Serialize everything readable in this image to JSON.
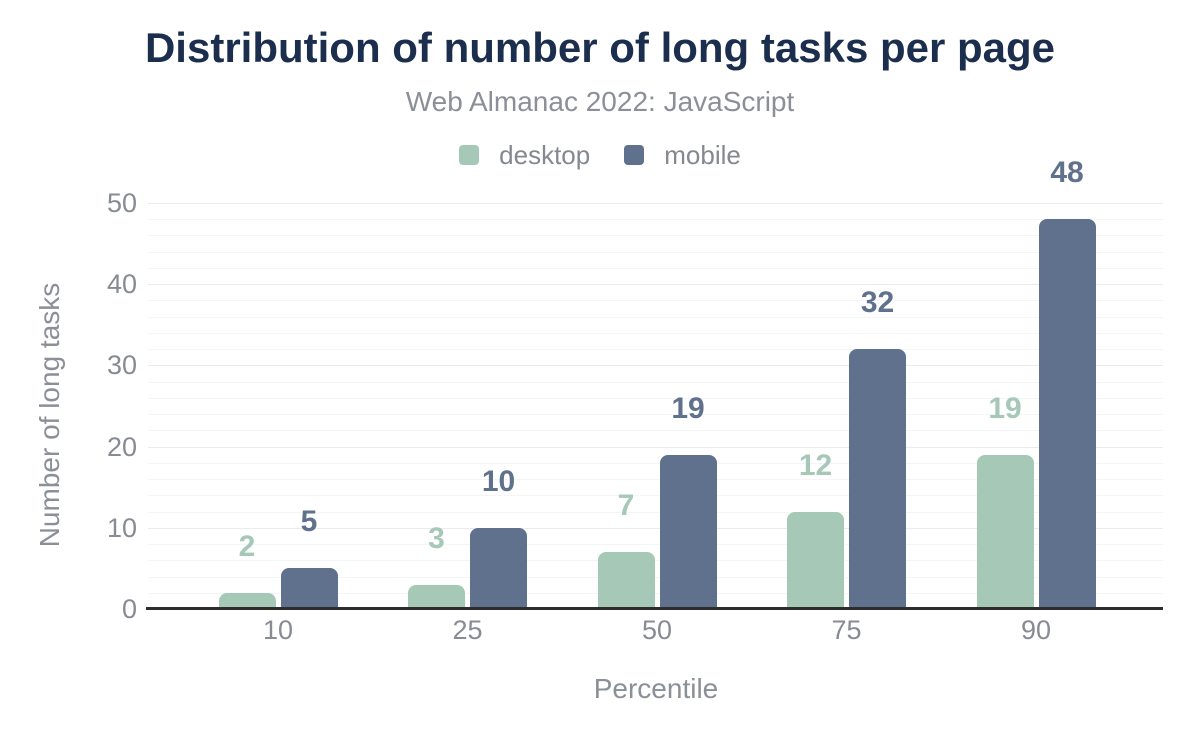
{
  "chart_data": {
    "type": "bar",
    "title": "Distribution of number of long tasks per page",
    "subtitle": "Web Almanac 2022: JavaScript",
    "categories": [
      "10",
      "25",
      "50",
      "75",
      "90"
    ],
    "series": [
      {
        "name": "desktop",
        "color": "#a5c8b7",
        "values": [
          2,
          3,
          7,
          12,
          19
        ]
      },
      {
        "name": "mobile",
        "color": "#5f718c",
        "values": [
          5,
          10,
          19,
          32,
          48
        ]
      }
    ],
    "data_labels_shown": true,
    "xlabel": "Percentile",
    "ylabel": "Number of long tasks",
    "ylim": [
      0,
      50
    ],
    "yticks": [
      "0",
      "10",
      "20",
      "30",
      "40",
      "50"
    ],
    "grid": "horizontal, minor every 2 units, major every 10 units",
    "legend_position": "top-center",
    "colors": {
      "title": "#1c2e4e",
      "muted_text": "#8b8f97",
      "tick_text": "#878b93",
      "axis_line": "#2d2d2d",
      "gridline_minor": "#f4f5f7",
      "gridline_major": "#e9ebee",
      "background": "#ffffff"
    }
  }
}
